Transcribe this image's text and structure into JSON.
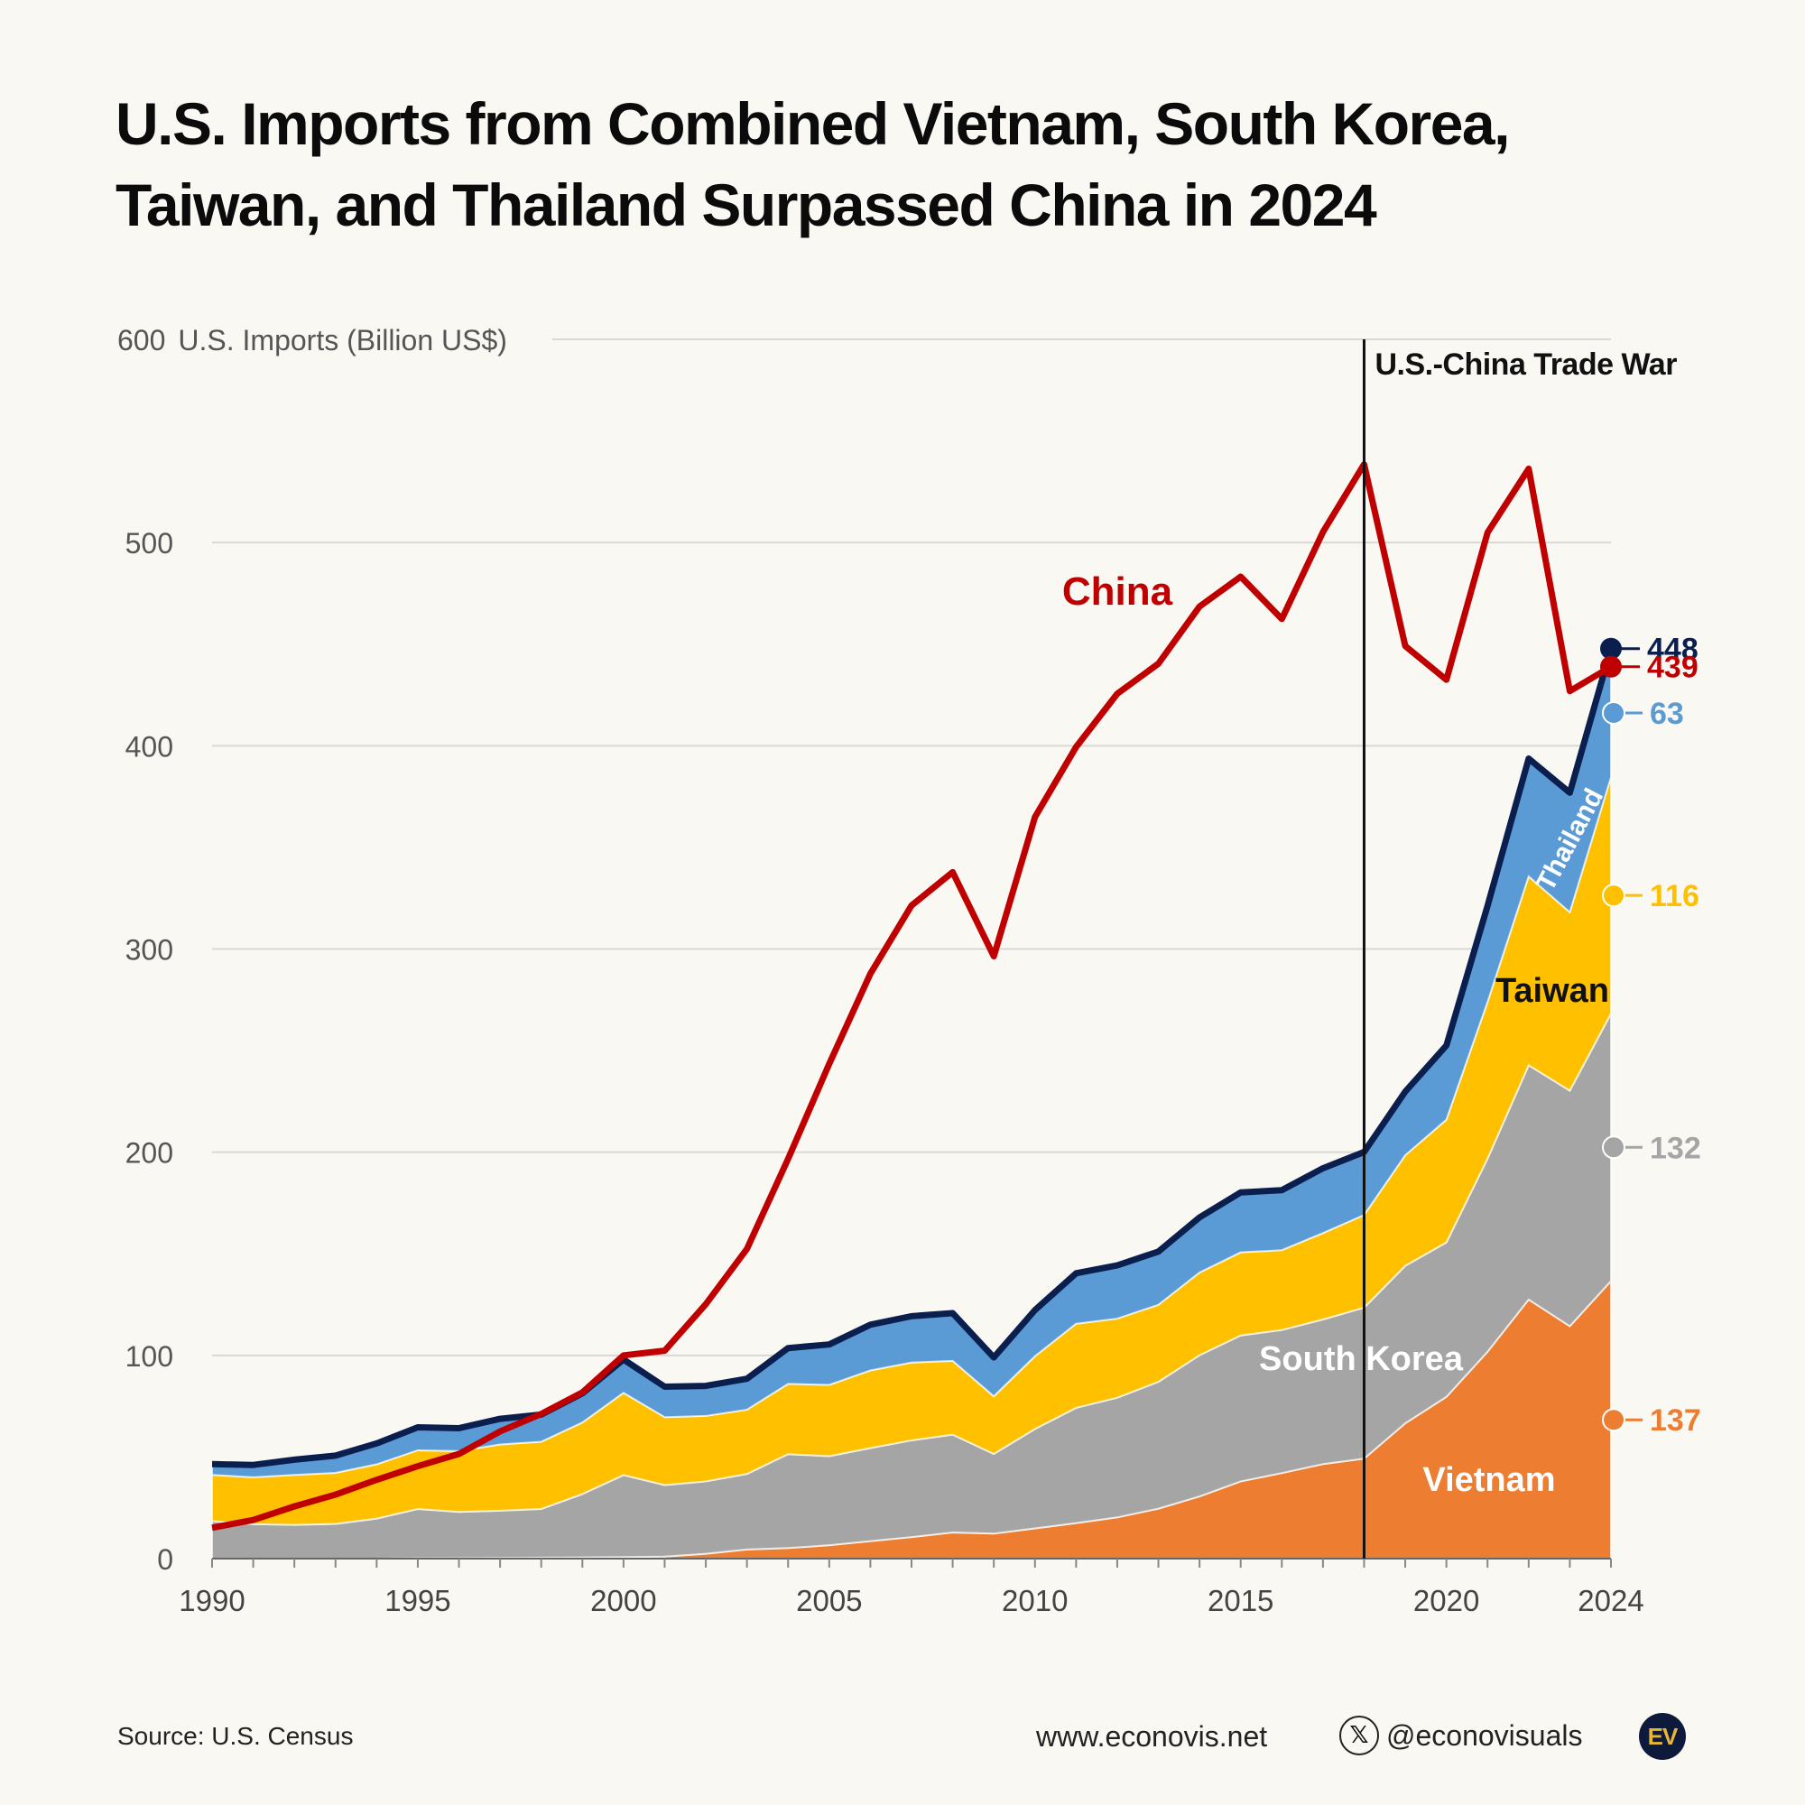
{
  "title": {
    "line1": "U.S. Imports from Combined Vietnam, South Korea,",
    "line2": "Taiwan, and Thailand Surpassed China in 2024"
  },
  "footer": {
    "source": "Source: U.S. Census",
    "website": "www.econovis.net",
    "handle": "@econovisuals",
    "x_icon": "x-logo-icon",
    "logo_text": "EV"
  },
  "colors": {
    "vietnam": "#ed7d31",
    "south_korea": "#a5a5a5",
    "taiwan": "#ffc000",
    "thailand": "#5b9bd5",
    "combined": "#0b1f4f",
    "china": "#c00000"
  },
  "chart_data": {
    "type": "area",
    "ylabel": "U.S. Imports (Billion US$)",
    "ylim": [
      0,
      600
    ],
    "yticks": [
      0,
      100,
      200,
      300,
      400,
      500,
      600
    ],
    "xticks": [
      1990,
      1995,
      2000,
      2005,
      2010,
      2015,
      2020,
      2024
    ],
    "x": [
      1990,
      1991,
      1992,
      1993,
      1994,
      1995,
      1996,
      1997,
      1998,
      1999,
      2000,
      2001,
      2002,
      2003,
      2004,
      2005,
      2006,
      2007,
      2008,
      2009,
      2010,
      2011,
      2012,
      2013,
      2014,
      2015,
      2016,
      2017,
      2018,
      2019,
      2020,
      2021,
      2022,
      2023,
      2024
    ],
    "stacked_series": [
      {
        "name": "Vietnam",
        "key": "vietnam",
        "values": [
          0,
          0,
          0,
          0,
          0,
          0.2,
          0.3,
          0.4,
          0.5,
          0.6,
          0.8,
          1.0,
          2.4,
          4.5,
          5.2,
          6.6,
          8.6,
          10.6,
          12.9,
          12.3,
          14.9,
          17.5,
          20.3,
          24.6,
          30.6,
          38.0,
          42.1,
          46.5,
          49.2,
          66.6,
          79.6,
          101.8,
          127.5,
          114.4,
          136.6
        ]
      },
      {
        "name": "South Korea",
        "key": "south_korea",
        "values": [
          18.5,
          17.0,
          16.6,
          17.1,
          19.7,
          24.2,
          22.7,
          23.2,
          23.9,
          31.2,
          40.3,
          35.2,
          35.6,
          37.2,
          46.2,
          43.8,
          45.8,
          47.6,
          48.1,
          39.2,
          48.9,
          56.7,
          58.9,
          62.4,
          69.5,
          71.8,
          70.4,
          71.2,
          74.3,
          77.5,
          76.0,
          95.0,
          115.3,
          115.9,
          131.6
        ]
      },
      {
        "name": "Taiwan",
        "key": "taiwan",
        "values": [
          22.7,
          23.0,
          24.6,
          25.1,
          26.7,
          28.9,
          29.9,
          32.6,
          33.1,
          35.2,
          40.5,
          33.4,
          32.2,
          31.6,
          34.6,
          35.1,
          38.2,
          38.3,
          36.3,
          28.4,
          35.8,
          41.4,
          38.9,
          37.9,
          40.7,
          40.9,
          39.3,
          42.5,
          45.6,
          54.4,
          60.4,
          77.1,
          92.9,
          87.8,
          116.3
        ]
      },
      {
        "name": "Thailand",
        "key": "thailand",
        "values": [
          5.3,
          6.1,
          7.5,
          8.5,
          10.3,
          11.3,
          11.3,
          12.6,
          13.4,
          14.3,
          16.4,
          15.0,
          14.8,
          15.2,
          17.6,
          19.9,
          22.5,
          22.8,
          23.5,
          19.1,
          22.7,
          24.8,
          26.2,
          26.2,
          27.1,
          29.5,
          29.5,
          31.9,
          31.0,
          31.3,
          36.5,
          47.3,
          58.0,
          58.8,
          63.3
        ]
      }
    ],
    "line_series": [
      {
        "name": "China",
        "key": "china",
        "values": [
          15.2,
          19.0,
          25.7,
          31.5,
          38.8,
          45.5,
          51.5,
          62.6,
          71.2,
          81.8,
          100.0,
          102.3,
          125.2,
          152.4,
          196.7,
          243.5,
          287.8,
          321.4,
          337.8,
          296.4,
          364.9,
          399.4,
          425.6,
          440.4,
          468.5,
          483.2,
          462.4,
          505.2,
          538.5,
          449.1,
          432.5,
          504.9,
          536.3,
          426.9,
          438.9
        ]
      }
    ],
    "annotations": {
      "trade_war": {
        "year": 2018,
        "label": "U.S.-China Trade War"
      },
      "china_label": "China",
      "area_labels": {
        "vietnam": "Vietnam",
        "south_korea": "South Korea",
        "taiwan": "Taiwan",
        "thailand": "Thailand"
      },
      "end_values": [
        {
          "key": "combined",
          "label": "448",
          "value": 448
        },
        {
          "key": "china",
          "label": "439",
          "value": 439
        },
        {
          "key": "thailand",
          "label": "63",
          "value": 63
        },
        {
          "key": "taiwan",
          "label": "116",
          "value": 116
        },
        {
          "key": "south_korea",
          "label": "132",
          "value": 132
        },
        {
          "key": "vietnam",
          "label": "137",
          "value": 137
        }
      ]
    }
  }
}
